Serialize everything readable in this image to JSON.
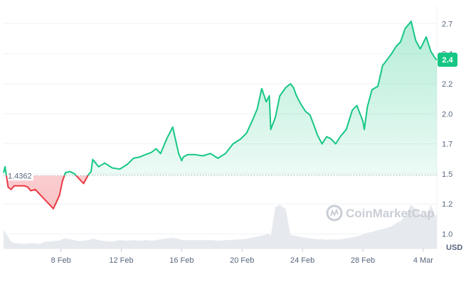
{
  "watermark": "CoinMarketCap",
  "colors": {
    "up": "#16c784",
    "down": "#ea3943",
    "grid": "#eff2f5",
    "text": "#58667e",
    "volume": "#e6e9ee",
    "badge": "#16c784"
  },
  "icons": [
    "coinmarketcap-logo-icon"
  ],
  "chart_data": {
    "type": "area",
    "currency": "USD",
    "baseline": 1.4362,
    "baseline_label": "1.4362",
    "current_value": 2.4,
    "current_label": "2.4",
    "ylim": [
      0.9,
      2.85
    ],
    "y_ticks": [
      {
        "value": 2.7,
        "label": "2.7"
      },
      {
        "value": 2.45,
        "label": "2.4"
      },
      {
        "value": 2.2,
        "label": "2.2"
      },
      {
        "value": 1.95,
        "label": "2.0"
      },
      {
        "value": 1.7,
        "label": "1.7"
      },
      {
        "value": 1.45,
        "label": "1.5"
      },
      {
        "value": 1.2,
        "label": "1.2"
      },
      {
        "value": 0.95,
        "label": "1.0"
      }
    ],
    "x_ticks": [
      {
        "day": 8,
        "label": "8 Feb"
      },
      {
        "day": 12,
        "label": "12 Feb"
      },
      {
        "day": 16,
        "label": "16 Feb"
      },
      {
        "day": 20,
        "label": "20 Feb"
      },
      {
        "day": 24,
        "label": "24 Feb"
      },
      {
        "day": 28,
        "label": "28 Feb"
      },
      {
        "day": 32,
        "label": "4 Mar"
      }
    ],
    "xlim": [
      4.2,
      32.9
    ],
    "series": [
      {
        "x": [
          4.2,
          4.3,
          4.5,
          4.7,
          4.9,
          5.6,
          5.8,
          6.0,
          6.3,
          6.6,
          6.9,
          7.2,
          7.5,
          7.9,
          8.1,
          8.3,
          8.6,
          8.9,
          9.2,
          9.5,
          9.8,
          10.0,
          10.1,
          10.5,
          10.9,
          11.4,
          11.9,
          12.4,
          12.8,
          13.2,
          13.6,
          14.0,
          14.3,
          14.6,
          15.0,
          15.4,
          15.8,
          16.0,
          16.1,
          16.4,
          16.9,
          17.4,
          17.9,
          18.4,
          18.9,
          19.4,
          19.9,
          20.3,
          20.7,
          21.0,
          21.3,
          21.6,
          21.8,
          21.9,
          22.2,
          22.5,
          22.9,
          23.2,
          23.4,
          23.6,
          23.9,
          24.2,
          24.5,
          24.8,
          25.0,
          25.3,
          25.6,
          25.9,
          26.2,
          26.5,
          26.9,
          27.3,
          27.6,
          28.0,
          28.1,
          28.3,
          28.6,
          29.0,
          29.3,
          29.6,
          29.9,
          30.2,
          30.5,
          30.8,
          31.2,
          31.5,
          31.8,
          32.2,
          32.5,
          32.8,
          32.9
        ],
        "y": [
          1.46,
          1.51,
          1.34,
          1.32,
          1.35,
          1.35,
          1.34,
          1.31,
          1.32,
          1.28,
          1.24,
          1.2,
          1.16,
          1.27,
          1.39,
          1.46,
          1.47,
          1.45,
          1.41,
          1.37,
          1.44,
          1.47,
          1.57,
          1.51,
          1.54,
          1.5,
          1.49,
          1.53,
          1.58,
          1.59,
          1.61,
          1.63,
          1.66,
          1.62,
          1.74,
          1.84,
          1.62,
          1.56,
          1.59,
          1.61,
          1.61,
          1.6,
          1.62,
          1.58,
          1.62,
          1.7,
          1.74,
          1.79,
          1.9,
          1.99,
          2.16,
          2.05,
          2.1,
          1.82,
          1.92,
          2.1,
          2.17,
          2.2,
          2.17,
          2.1,
          2.03,
          1.97,
          1.94,
          1.84,
          1.77,
          1.7,
          1.76,
          1.74,
          1.7,
          1.76,
          1.82,
          1.98,
          2.02,
          1.89,
          1.82,
          2.01,
          2.15,
          2.18,
          2.35,
          2.4,
          2.45,
          2.51,
          2.55,
          2.66,
          2.72,
          2.56,
          2.49,
          2.59,
          2.47,
          2.41,
          2.4
        ],
        "volume": [
          0.4,
          0.35,
          0.25,
          0.15,
          0.12,
          0.1,
          0.1,
          0.12,
          0.11,
          0.1,
          0.14,
          0.15,
          0.16,
          0.17,
          0.2,
          0.22,
          0.2,
          0.18,
          0.16,
          0.17,
          0.18,
          0.2,
          0.22,
          0.18,
          0.16,
          0.15,
          0.18,
          0.17,
          0.18,
          0.17,
          0.18,
          0.17,
          0.18,
          0.2,
          0.22,
          0.23,
          0.21,
          0.18,
          0.18,
          0.18,
          0.18,
          0.18,
          0.18,
          0.17,
          0.18,
          0.19,
          0.2,
          0.21,
          0.24,
          0.26,
          0.28,
          0.3,
          0.32,
          0.27,
          0.9,
          0.95,
          0.85,
          0.3,
          0.28,
          0.27,
          0.25,
          0.23,
          0.22,
          0.21,
          0.2,
          0.2,
          0.19,
          0.2,
          0.19,
          0.2,
          0.22,
          0.24,
          0.26,
          0.3,
          0.32,
          0.34,
          0.36,
          0.4,
          0.42,
          0.45,
          0.48,
          0.55,
          0.6,
          0.7,
          0.95,
          0.85,
          0.75,
          0.7,
          0.95,
          0.7,
          0.75
        ]
      }
    ]
  }
}
